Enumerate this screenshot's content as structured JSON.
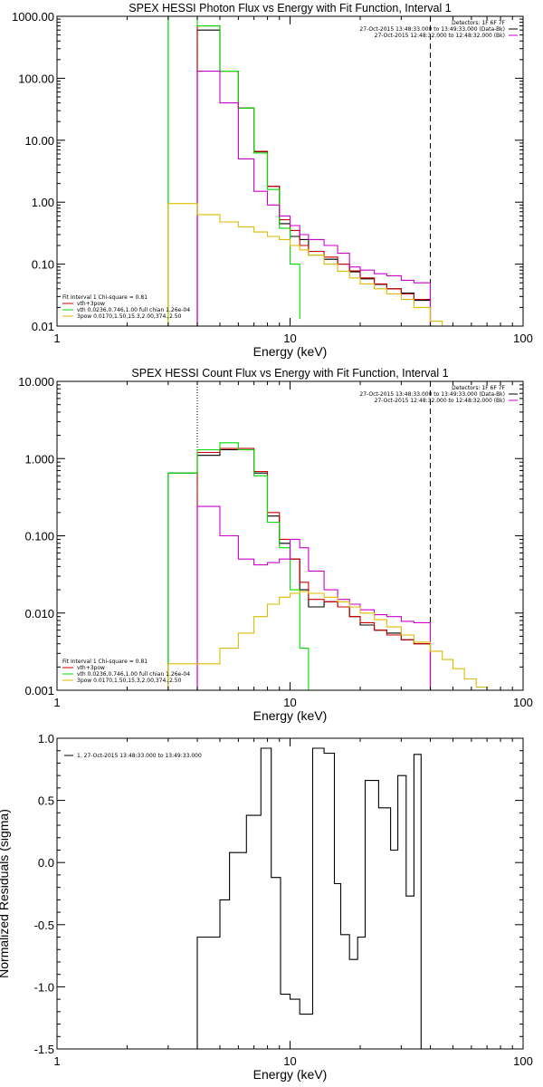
{
  "chart_data": [
    {
      "type": "line",
      "title": "SPEX HESSI Photon Flux vs Energy with Fit Function, Interval 1",
      "xlabel": "Energy (keV)",
      "ylabel": "",
      "xscale": "log",
      "yscale": "log",
      "xlim": [
        1,
        100
      ],
      "ylim": [
        0.01,
        1000
      ],
      "yticks": [
        0.01,
        0.1,
        1,
        10,
        100,
        1000
      ],
      "ytick_labels": [
        "0.01",
        "0.10",
        "1.00",
        "10.00",
        "100.00",
        "1000.00"
      ],
      "xticks": [
        1,
        10,
        100
      ],
      "xtick_labels": [
        "1",
        "10",
        "100"
      ],
      "vlines": [
        {
          "x": 3.0,
          "color": "#00dd00",
          "style": "solid"
        },
        {
          "x": 4.0,
          "color": "#cc00cc",
          "style": "dotted"
        },
        {
          "x": 40.0,
          "color": "#000000",
          "style": "dashed"
        }
      ],
      "legend_tr": {
        "lines": [
          "Detectors: 1F 6F 7F",
          "27-Oct-2015 13:48:33.000 to 13:49:33.000 (Data-Bk)",
          "27-Oct-2015 12:48:32.000 to 12:48:32.000 (Bk)"
        ],
        "colors": [
          "",
          "#000000",
          "#cc00cc"
        ]
      },
      "legend_bl": {
        "lines": [
          "Fit Interval 1   Chi-square = 0.81",
          "vth+3pow",
          "vth 0.0236,0.746,1.00  full chian 1.26e-04",
          "3pow 0.0170,1.50,15.3,2.00,374.,2.50"
        ],
        "colors": [
          "",
          "#cc0000",
          "#00dd00",
          "#ddbb00"
        ]
      },
      "series": [
        {
          "color": "#000000",
          "edges": [
            4.0,
            5.0,
            6.0,
            7.0,
            8.0,
            9.0,
            10.0,
            11.0,
            12.0,
            14.0,
            16.0,
            18.0,
            20.0,
            23.0,
            26.0,
            30.0,
            34.0,
            40.0
          ],
          "values": [
            600,
            130,
            33,
            6.5,
            1.8,
            0.45,
            0.28,
            0.25,
            0.14,
            0.12,
            0.1,
            0.075,
            0.058,
            0.047,
            0.04,
            0.034,
            0.026
          ]
        },
        {
          "color": "#cc0000",
          "edges": [
            4.0,
            5.0,
            6.0,
            7.0,
            8.0,
            9.0,
            10.0,
            11.0,
            12.0,
            14.0,
            16.0,
            18.0,
            20.0,
            23.0,
            26.0,
            30.0,
            34.0,
            40.0
          ],
          "values": [
            700,
            130,
            33,
            6.6,
            1.8,
            0.52,
            0.35,
            0.2,
            0.16,
            0.13,
            0.1,
            0.078,
            0.06,
            0.048,
            0.04,
            0.033,
            0.027
          ]
        },
        {
          "color": "#00dd00",
          "edges": [
            3.0,
            4.0,
            5.0,
            6.0,
            7.0,
            8.0,
            9.0,
            10.0,
            11.0
          ],
          "values": [
            1000,
            700,
            130,
            33,
            6.2,
            1.6,
            0.38,
            0.1,
            0.013
          ]
        },
        {
          "color": "#cc00cc",
          "edges": [
            4.0,
            5.0,
            6.0,
            7.0,
            8.0,
            9.0,
            10.0,
            11.0,
            12.0,
            14.0,
            16.0,
            18.0,
            20.0,
            23.0,
            26.0,
            30.0,
            34.0,
            40.0
          ],
          "values": [
            130,
            40,
            5,
            1.5,
            0.9,
            0.6,
            0.42,
            0.3,
            0.25,
            0.2,
            0.15,
            0.09,
            0.08,
            0.07,
            0.065,
            0.055,
            0.05
          ]
        },
        {
          "color": "#ddbb00",
          "edges": [
            3.0,
            4.0,
            5.0,
            6.0,
            7.0,
            8.0,
            9.0,
            10.0,
            11.0,
            12.0,
            14.0,
            16.0,
            18.0,
            20.0,
            23.0,
            26.0,
            30.0,
            34.0,
            40.0,
            45.0,
            50.0
          ],
          "values": [
            0.95,
            0.63,
            0.48,
            0.4,
            0.33,
            0.28,
            0.25,
            0.2,
            0.17,
            0.14,
            0.1,
            0.077,
            0.06,
            0.048,
            0.04,
            0.033,
            0.027,
            0.02,
            0.012,
            0.01
          ]
        }
      ]
    },
    {
      "type": "line",
      "title": "SPEX HESSI Count Flux vs Energy with Fit Function, Interval 1",
      "xlabel": "Energy (keV)",
      "ylabel": "",
      "xscale": "log",
      "yscale": "log",
      "xlim": [
        1,
        100
      ],
      "ylim": [
        0.001,
        10
      ],
      "yticks": [
        0.001,
        0.01,
        0.1,
        1,
        10
      ],
      "ytick_labels": [
        "0.001",
        "0.010",
        "0.100",
        "1.000",
        "10.000"
      ],
      "xticks": [
        1,
        10,
        100
      ],
      "xtick_labels": [
        "1",
        "10",
        "100"
      ],
      "vlines": [
        {
          "x": 4.0,
          "color": "#000000",
          "style": "dotted"
        },
        {
          "x": 40.0,
          "color": "#000000",
          "style": "dashed"
        }
      ],
      "legend_tr": {
        "lines": [
          "Detectors: 1F 6F 7F",
          "27-Oct-2015 13:48:33.000 to 13:49:33.000 (Data-Bk)",
          "27-Oct-2015 12:48:32.000 to 12:48:32.000 (Bk)"
        ],
        "colors": [
          "",
          "#000000",
          "#cc00cc"
        ]
      },
      "legend_bl": {
        "lines": [
          "Fit Interval 1   Chi-square = 0.81",
          "vth+3pow",
          "vth 0.0236,0.746,1.00  full chian 1.26e-04",
          "3pow 0.0170,1.50,15.3,2.00,374.,2.50"
        ],
        "colors": [
          "",
          "#cc0000",
          "#00dd00",
          "#ddbb00"
        ]
      },
      "series": [
        {
          "color": "#000000",
          "edges": [
            3.0,
            4.0,
            5.0,
            6.0,
            7.0,
            8.0,
            9.0,
            10.0,
            11.0,
            12.0,
            14.0,
            16.0,
            18.0,
            20.0,
            23.0,
            26.0,
            30.0,
            34.0,
            40.0
          ],
          "values": [
            0.65,
            1.1,
            1.3,
            1.3,
            0.65,
            0.18,
            0.08,
            0.05,
            0.02,
            0.012,
            0.014,
            0.012,
            0.009,
            0.007,
            0.006,
            0.0055,
            0.0045,
            0.004
          ]
        },
        {
          "color": "#cc0000",
          "edges": [
            4.0,
            5.0,
            6.0,
            7.0,
            8.0,
            9.0,
            10.0,
            11.0,
            12.0,
            14.0,
            16.0,
            18.0,
            20.0,
            23.0,
            26.0,
            30.0,
            34.0,
            40.0
          ],
          "values": [
            1.2,
            1.35,
            1.35,
            0.68,
            0.2,
            0.09,
            0.05,
            0.025,
            0.015,
            0.014,
            0.012,
            0.009,
            0.0075,
            0.006,
            0.0052,
            0.0045,
            0.004
          ]
        },
        {
          "color": "#00dd00",
          "edges": [
            3.0,
            4.0,
            5.0,
            6.0,
            7.0,
            8.0,
            9.0,
            10.0,
            11.0,
            12.0
          ],
          "values": [
            0.65,
            1.3,
            1.6,
            1.3,
            0.6,
            0.15,
            0.07,
            0.02,
            0.0035,
            0.001
          ]
        },
        {
          "color": "#cc00cc",
          "edges": [
            4.0,
            5.0,
            6.0,
            7.0,
            8.0,
            9.0,
            10.0,
            11.0,
            12.0,
            14.0,
            16.0,
            18.0,
            20.0,
            23.0,
            26.0,
            30.0,
            34.0,
            40.0
          ],
          "values": [
            0.24,
            0.1,
            0.05,
            0.042,
            0.045,
            0.05,
            0.09,
            0.07,
            0.035,
            0.02,
            0.015,
            0.013,
            0.011,
            0.0095,
            0.009,
            0.0078,
            0.0075
          ]
        },
        {
          "color": "#ddbb00",
          "edges": [
            3.0,
            4.0,
            5.0,
            6.0,
            7.0,
            8.0,
            9.0,
            10.0,
            11.0,
            12.0,
            14.0,
            16.0,
            18.0,
            20.0,
            23.0,
            26.0,
            30.0,
            34.0,
            40.0,
            45.0,
            50.0,
            56.0,
            63.0,
            70.0
          ],
          "values": [
            0.0022,
            0.0022,
            0.0035,
            0.0055,
            0.009,
            0.013,
            0.016,
            0.018,
            0.019,
            0.018,
            0.016,
            0.014,
            0.012,
            0.01,
            0.0082,
            0.0066,
            0.0052,
            0.0042,
            0.0032,
            0.0025,
            0.0019,
            0.0014,
            0.0011
          ]
        }
      ]
    },
    {
      "type": "line",
      "title": "",
      "xlabel": "Energy (keV)",
      "ylabel": "Normalized Residuals (sigma)",
      "xscale": "log",
      "yscale": "linear",
      "xlim": [
        1,
        100
      ],
      "ylim": [
        -1.5,
        1.0
      ],
      "yticks": [
        -1.5,
        -1.0,
        -0.5,
        0.0,
        0.5,
        1.0
      ],
      "ytick_labels": [
        "-1.5",
        "-1.0",
        "-0.5",
        "0.0",
        "0.5",
        "1.0"
      ],
      "xticks": [
        1,
        10,
        100
      ],
      "xtick_labels": [
        "1",
        "10",
        "100"
      ],
      "legend_tl": {
        "lines": [
          "1. 27-Oct-2015 13:48:33.000 to 13:49:33.000"
        ],
        "colors": [
          "#000000"
        ]
      },
      "series": [
        {
          "color": "#000000",
          "edges": [
            4.0,
            5.0,
            5.5,
            6.5,
            7.5,
            8.3,
            9.1,
            10.0,
            11.0,
            12.5,
            14.0,
            15.5,
            16.5,
            18.0,
            19.5,
            21.0,
            24.0,
            27.0,
            29.0,
            31.5,
            34.0,
            36.5,
            40.0
          ],
          "values": [
            -0.6,
            -0.3,
            0.08,
            0.38,
            0.92,
            -0.12,
            -1.06,
            -1.1,
            -1.22,
            0.92,
            0.88,
            -0.17,
            -0.58,
            -0.78,
            -0.6,
            0.66,
            0.44,
            0.1,
            0.7,
            -0.27,
            0.87,
            -1.5
          ]
        }
      ]
    }
  ]
}
